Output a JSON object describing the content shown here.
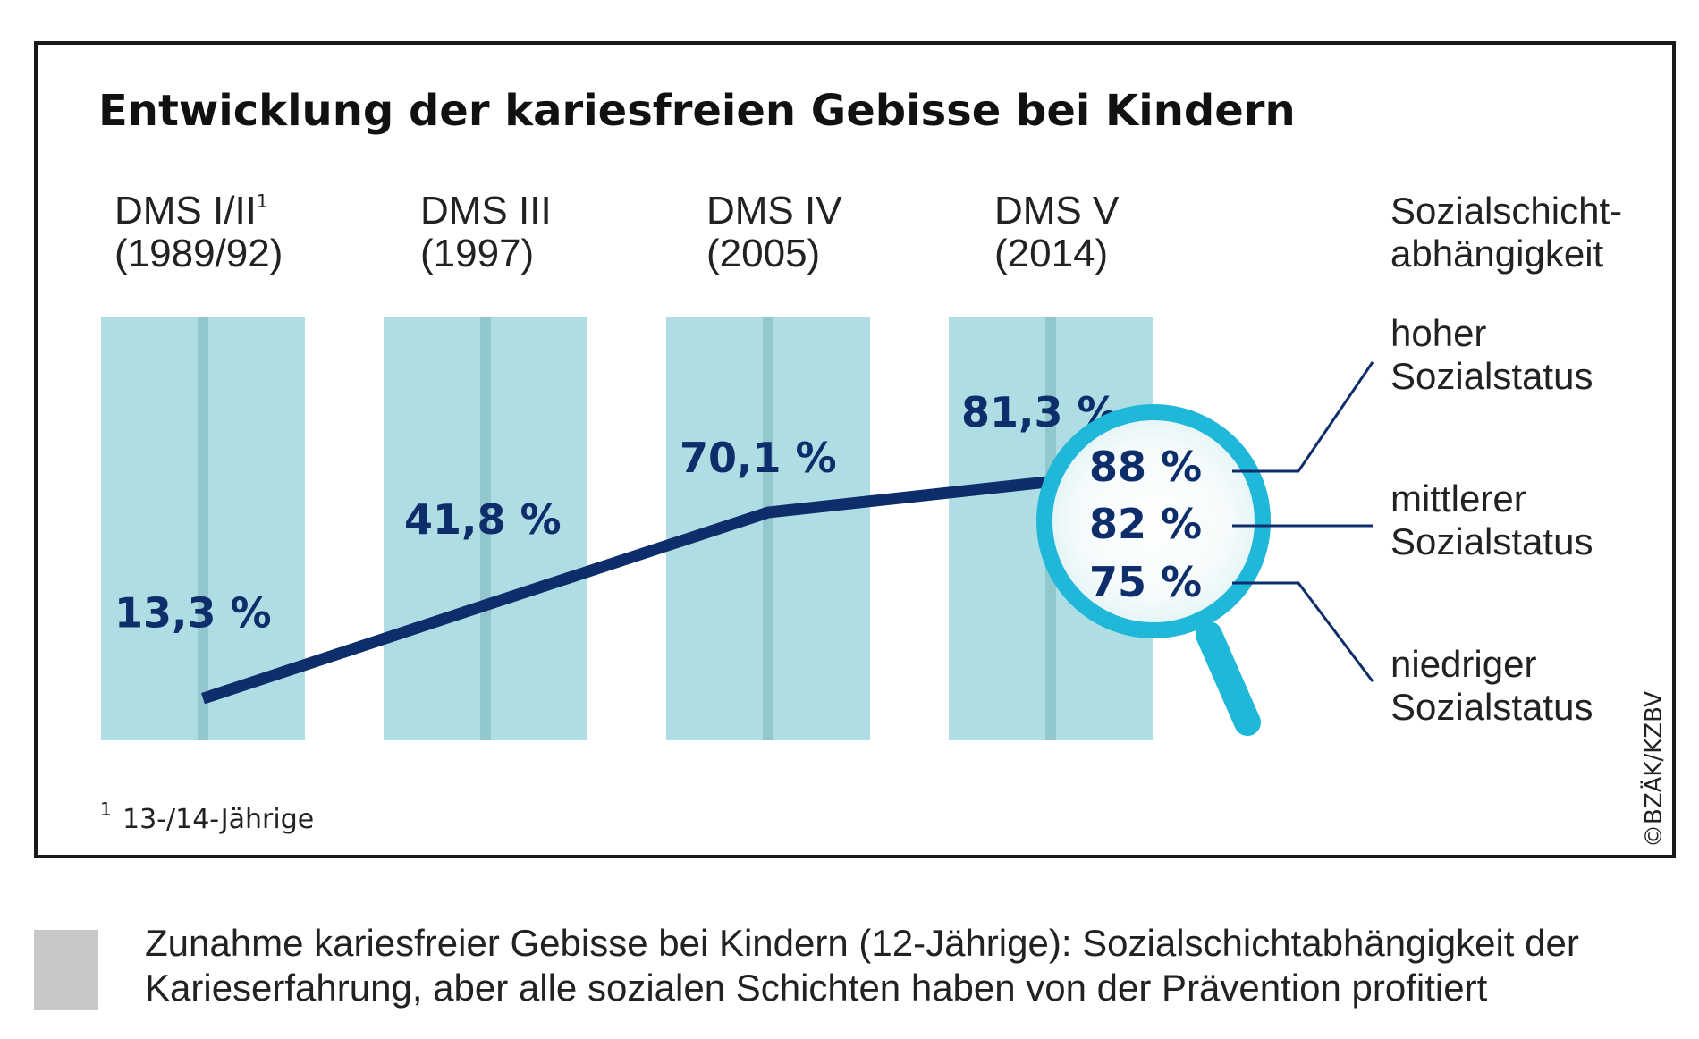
{
  "chart_data": {
    "type": "line",
    "title": "Entwicklung der kariesfreien Gebisse bei Kindern",
    "categories": [
      {
        "label": "DMS I/II",
        "superscript": "1",
        "period": "(1989/92)"
      },
      {
        "label": "DMS III",
        "superscript": "",
        "period": "(1997)"
      },
      {
        "label": "DMS IV",
        "superscript": "",
        "period": "(2005)"
      },
      {
        "label": "DMS V",
        "superscript": "",
        "period": "(2014)"
      }
    ],
    "values": [
      13.3,
      41.8,
      70.1,
      81.3
    ],
    "value_labels": [
      "13,3 %",
      "41,8 %",
      "70,1 %",
      "81,3 %"
    ],
    "ylim": [
      0,
      100
    ],
    "grid": false,
    "social_breakdown": {
      "heading": [
        "Sozialschicht-",
        "abhängigkeit"
      ],
      "items": [
        {
          "value": 88,
          "label": "88 %",
          "status": [
            "hoher",
            "Sozialstatus"
          ]
        },
        {
          "value": 82,
          "label": "82 %",
          "status": [
            "mittlerer",
            "Sozialstatus"
          ]
        },
        {
          "value": 75,
          "label": "75 %",
          "status": [
            "niedriger",
            "Sozialstatus"
          ]
        }
      ]
    },
    "footnote": {
      "marker": "1",
      "text": "13-/14-Jährige"
    },
    "credit": "©BZÄK/KZBV",
    "colors": {
      "column": "#aedde4",
      "column_stripe": "#93c7ce",
      "line": "#0d2d6b",
      "magnifier_ring": "#1fb8d9",
      "caption_swatch": "#c8c8c8"
    }
  },
  "caption": "Zunahme kariesfreier Gebisse bei Kindern (12-Jährige): Sozialschichtabhängigkeit der Karieserfahrung, aber alle sozialen Schichten haben von der Prävention profitiert"
}
